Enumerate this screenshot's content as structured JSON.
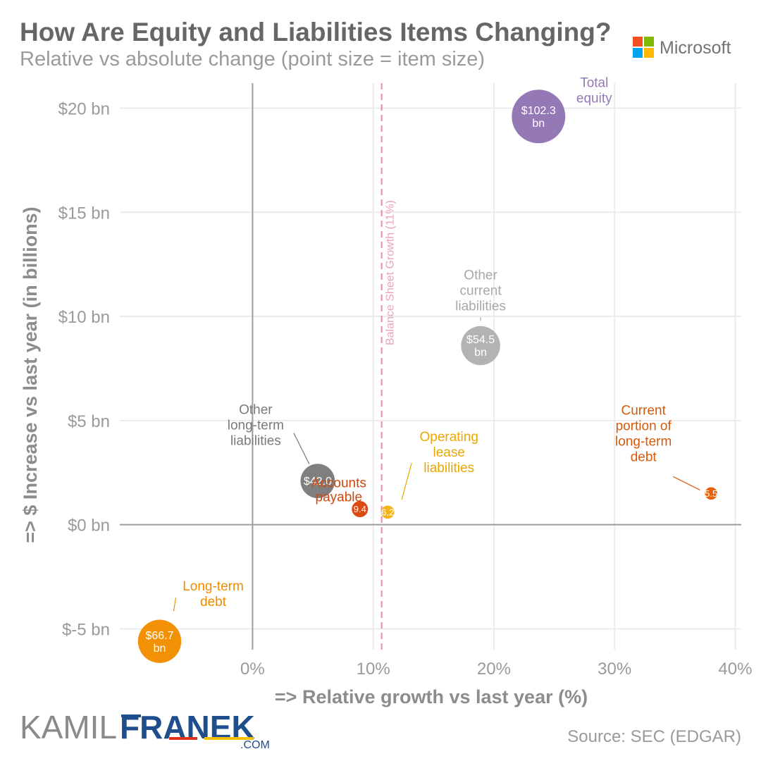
{
  "title": "How Are Equity and Liabilities Items Changing?",
  "subtitle": "Relative vs absolute change (point size = item size)",
  "brand": {
    "name": "Microsoft",
    "colors": [
      "#f25022",
      "#7fba00",
      "#00a4ef",
      "#ffb900"
    ]
  },
  "source": "Source: SEC (EDGAR)",
  "logo": {
    "part1": "KAMIL",
    "part2": "FRANEK",
    "suffix": ".COM"
  },
  "chart_data": {
    "type": "scatter",
    "xlabel": "=> Relative growth vs last year (%)",
    "ylabel": "=> $ Increase vs last year (in billions)",
    "xlim": [
      -11,
      40.5
    ],
    "ylim": [
      -6,
      21.2
    ],
    "x_ticks": [
      {
        "value": 0,
        "label": "0%"
      },
      {
        "value": 10,
        "label": "10%"
      },
      {
        "value": 20,
        "label": "20%"
      },
      {
        "value": 30,
        "label": "30%"
      },
      {
        "value": 40,
        "label": "40%"
      }
    ],
    "y_ticks": [
      {
        "value": -5,
        "label": "$-5 bn"
      },
      {
        "value": 0,
        "label": "$0 bn"
      },
      {
        "value": 5,
        "label": "$5 bn"
      },
      {
        "value": 10,
        "label": "$10 bn"
      },
      {
        "value": 15,
        "label": "$15 bn"
      },
      {
        "value": 20,
        "label": "$20 bn"
      }
    ],
    "grid": true,
    "reference_line": {
      "x": 10.7,
      "label": "Balance Sheet Growth (11%)",
      "color": "#e889a8"
    },
    "points": [
      {
        "name": "Total equity",
        "label_lines": [
          "Total",
          "equity"
        ],
        "x": 23.7,
        "y": 19.6,
        "size": 102.3,
        "value_lines": [
          "$102.3",
          "bn"
        ],
        "color": "#9579b7",
        "label_color": "#9579b7"
      },
      {
        "name": "Other current liabilities",
        "label_lines": [
          "Other",
          "current",
          "liabilities"
        ],
        "x": 18.9,
        "y": 8.6,
        "size": 54.5,
        "value_lines": [
          "$54.5",
          "bn"
        ],
        "color": "#b3b3b3",
        "label_color": "#a8a8a8"
      },
      {
        "name": "Other long-term liabilities",
        "label_lines": [
          "Other",
          "long-term",
          "liabilities"
        ],
        "x": 5.4,
        "y": 2.1,
        "size": 42.0,
        "value_lines": [
          "$42.0"
        ],
        "color": "#7f7f7f",
        "label_color": "#7a7a7a"
      },
      {
        "name": "Accounts payable",
        "label_lines": [
          "Accounts",
          "payable"
        ],
        "x": 8.9,
        "y": 0.75,
        "size": 9.4,
        "value_lines": [
          "9.4"
        ],
        "color": "#db4a10",
        "label_color": "#cc4a0f"
      },
      {
        "name": "Operating lease liabilities",
        "label_lines": [
          "Operating",
          "lease",
          "liabilities"
        ],
        "x": 11.2,
        "y": 0.6,
        "size": 6.2,
        "value_lines": [
          "6.2"
        ],
        "color": "#f2b41a",
        "label_color": "#e8a800"
      },
      {
        "name": "Current portion of long-term debt",
        "label_lines": [
          "Current",
          "portion of",
          "long-term",
          "debt"
        ],
        "x": 38.0,
        "y": 1.5,
        "size": 5.5,
        "value_lines": [
          "5.5"
        ],
        "color": "#e8610a",
        "label_color": "#d65a0a"
      },
      {
        "name": "Long-term debt",
        "label_lines": [
          "Long-term",
          "debt"
        ],
        "x": -7.7,
        "y": -5.6,
        "size": 66.7,
        "value_lines": [
          "$66.7",
          "bn"
        ],
        "color": "#f29105",
        "label_color": "#ef8c00"
      }
    ]
  }
}
